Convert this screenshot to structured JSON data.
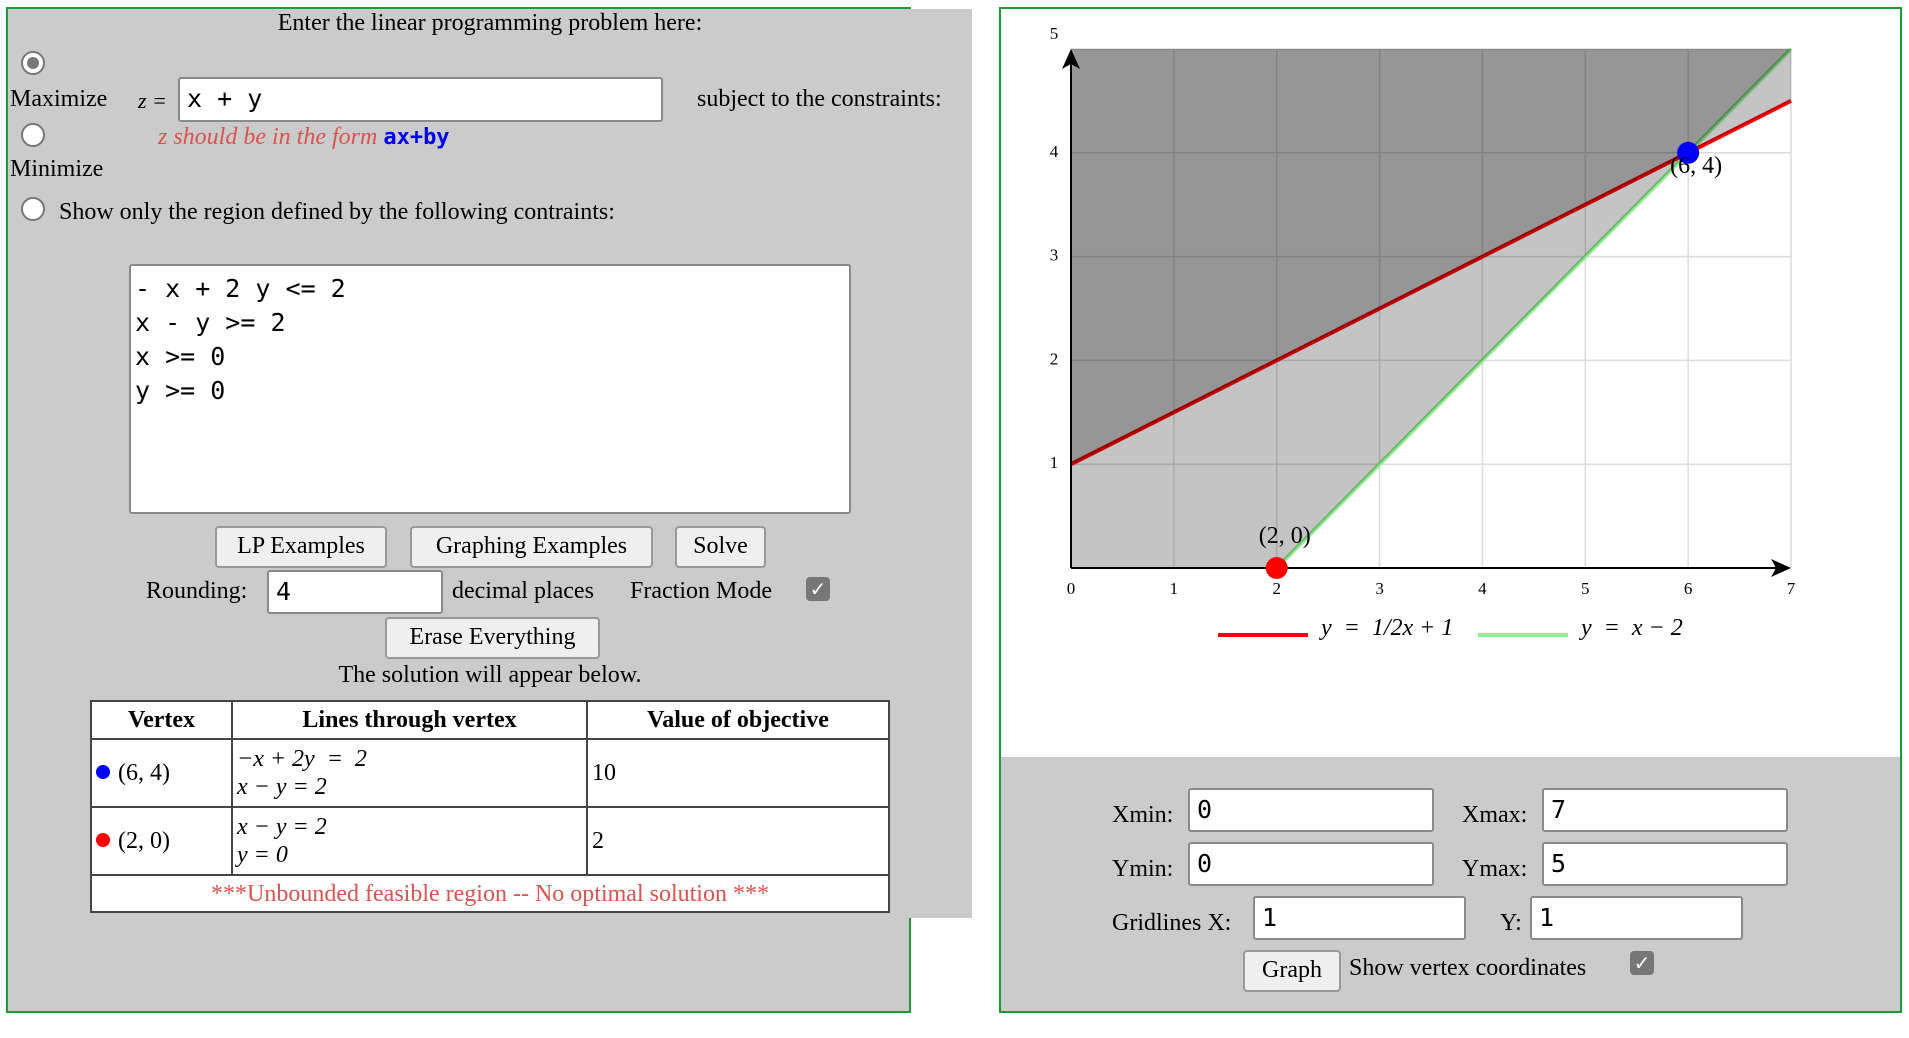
{
  "problem": {
    "heading": "Enter the linear programming problem here:",
    "maximize_label": "Maximize",
    "minimize_label": "Minimize",
    "region_only_label": "Show only the region defined by the following contraints:",
    "selected_mode": "Maximize",
    "z_label": "z =",
    "objective_value": "x + y",
    "subject_to": "subject to the constraints:",
    "hint_prefix": "z should be in the form",
    "hint_form": "ax+by",
    "constraints": "- x + 2 y <= 2\nx - y >= 2\nx >= 0\ny >= 0"
  },
  "buttons": {
    "lp_examples": "LP Examples",
    "graphing_examples": "Graphing Examples",
    "solve": "Solve",
    "erase": "Erase Everything",
    "graph": "Graph"
  },
  "rounding": {
    "label": "Rounding:",
    "value": "4",
    "suffix": "decimal places",
    "fraction_label": "Fraction Mode",
    "fraction_checked": true
  },
  "solution_note": "The solution will appear below.",
  "table": {
    "headers": [
      "Vertex",
      "Lines through vertex",
      "Value of objective"
    ],
    "rows": [
      {
        "vertex": "(6, 4)",
        "color": "#0000ff",
        "line1": "−x + 2y  =  2",
        "line2": "x − y = 2",
        "value": "10"
      },
      {
        "vertex": "(2, 0)",
        "color": "#ff0000",
        "line1": "x − y = 2",
        "line2": "y = 0",
        "value": "2"
      }
    ],
    "footer": "***Unbounded feasible region -- No optimal solution ***"
  },
  "graph": {
    "xlim": [
      0,
      7
    ],
    "ylim": [
      0,
      5
    ],
    "x_ticks": [
      "0",
      "1",
      "2",
      "3",
      "4",
      "5",
      "6",
      "7"
    ],
    "y_ticks": [
      "1",
      "2",
      "3",
      "4",
      "5"
    ],
    "grid": true,
    "lines": [
      {
        "legend": "y  =  1/2x + 1",
        "slope": 0.5,
        "intercept": 1,
        "color": "#ff0000"
      },
      {
        "legend": "y  =  x − 2",
        "slope": 1,
        "intercept": -2,
        "color": "#90ee90"
      }
    ],
    "vertices": [
      {
        "label": "(6, 4)",
        "x": 6,
        "y": 4,
        "color": "#0000ff"
      },
      {
        "label": "(2, 0)",
        "x": 2,
        "y": 0,
        "color": "#ff0000"
      }
    ]
  },
  "controls": {
    "xmin_label": "Xmin:",
    "xmin": "0",
    "xmax_label": "Xmax:",
    "xmax": "7",
    "ymin_label": "Ymin:",
    "ymin": "0",
    "ymax_label": "Ymax:",
    "ymax": "5",
    "gridx_label": "Gridlines X:",
    "gridx": "1",
    "gridy_label": "Y:",
    "gridy": "1",
    "show_vertex_label": "Show vertex coordinates",
    "show_vertex_checked": true
  }
}
